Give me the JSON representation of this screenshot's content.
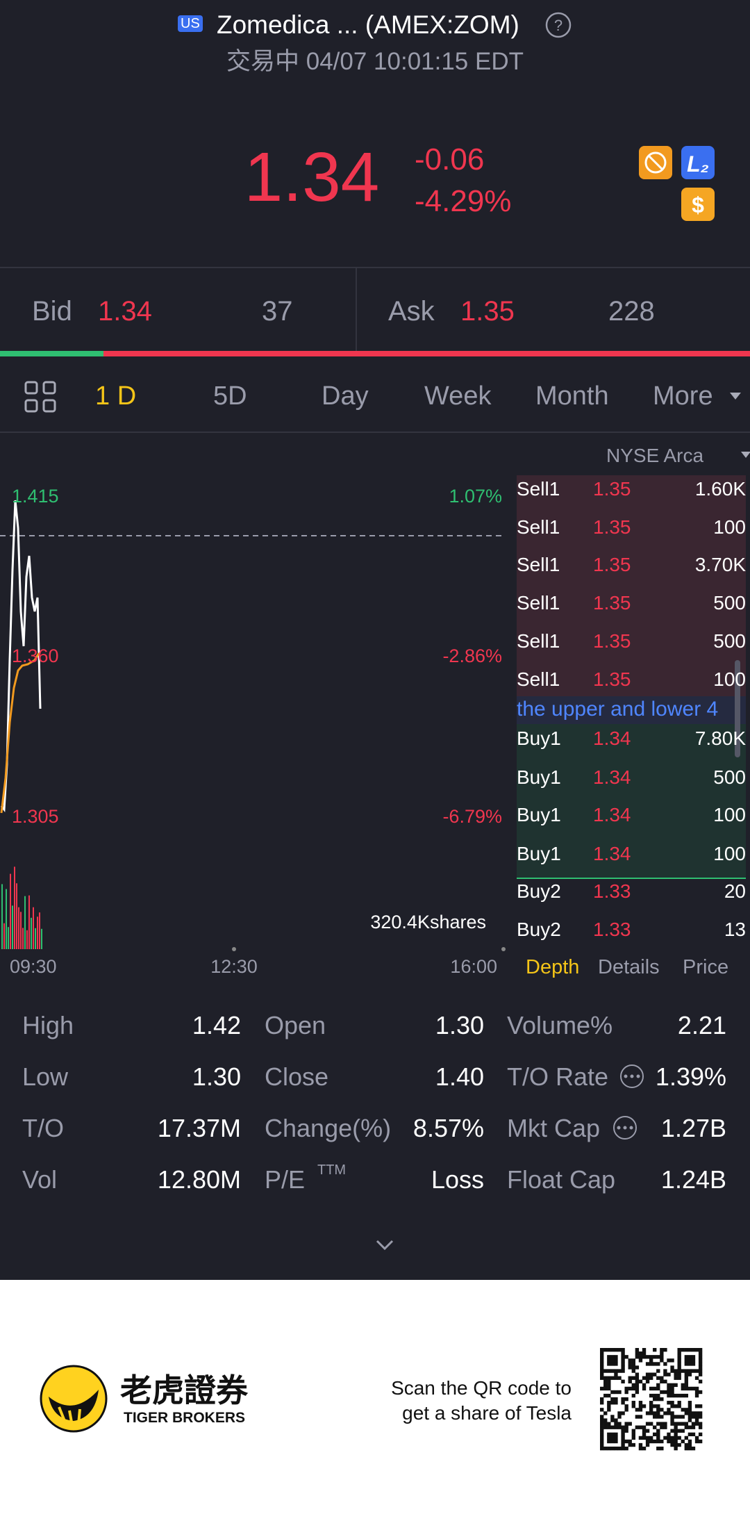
{
  "header": {
    "badge": "US",
    "title": "Zomedica ... (AMEX:ZOM)",
    "status": "交易中 04/07 10:01:15 EDT"
  },
  "quote": {
    "price": "1.34",
    "change": "-0.06",
    "change_pct": "-4.29%"
  },
  "bid_ask": {
    "bid_label": "Bid",
    "bid": "1.34",
    "bid_size": "37",
    "ask_label": "Ask",
    "ask": "1.35",
    "ask_size": "228"
  },
  "periods": [
    "1 D",
    "5D",
    "Day",
    "Week",
    "Month",
    "More"
  ],
  "chart": {
    "exchange": "NYSE Arca",
    "price_labels": [
      "1.415",
      "1.360",
      "1.305"
    ],
    "pct_labels": [
      "1.07%",
      "-2.86%",
      "-6.79%"
    ],
    "volume": "320.4Kshares",
    "times": [
      "09:30",
      "12:30",
      "16:00"
    ]
  },
  "order_book": {
    "sell": [
      [
        "Sell1",
        "1.35",
        "1.60K"
      ],
      [
        "Sell1",
        "1.35",
        "100"
      ],
      [
        "Sell1",
        "1.35",
        "3.70K"
      ],
      [
        "Sell1",
        "1.35",
        "500"
      ],
      [
        "Sell1",
        "1.35",
        "500"
      ],
      [
        "Sell1",
        "1.35",
        "100"
      ]
    ],
    "notice": "the upper and lower 4",
    "buy": [
      [
        "Buy1",
        "1.34",
        "7.80K"
      ],
      [
        "Buy1",
        "1.34",
        "500"
      ],
      [
        "Buy1",
        "1.34",
        "100"
      ],
      [
        "Buy1",
        "1.34",
        "100"
      ],
      [
        "Buy2",
        "1.33",
        "20"
      ],
      [
        "Buy2",
        "1.33",
        "13"
      ]
    ],
    "tabs": [
      "Depth",
      "Details",
      "Price"
    ]
  },
  "stats": [
    [
      {
        "label": "High",
        "value": "1.42"
      },
      {
        "label": "Open",
        "value": "1.30"
      },
      {
        "label": "Volume%",
        "value": "2.21"
      }
    ],
    [
      {
        "label": "Low",
        "value": "1.30"
      },
      {
        "label": "Close",
        "value": "1.40"
      },
      {
        "label": "T/O Rate",
        "value": "1.39%"
      }
    ],
    [
      {
        "label": "T/O",
        "value": "17.37M"
      },
      {
        "label": "Change(%)",
        "value": "8.57%"
      },
      {
        "label": "Mkt Cap",
        "value": "1.27B"
      }
    ],
    [
      {
        "label": "Vol",
        "value": "12.80M"
      },
      {
        "label": "P/E",
        "sup": "TTM",
        "value": "Loss"
      },
      {
        "label": "Float Cap",
        "value": "1.24B"
      }
    ]
  ],
  "footer": {
    "brand_cn": "老虎證券",
    "brand_en": "TIGER BROKERS",
    "scan": [
      "Scan the QR code to",
      "get a share of Tesla"
    ]
  }
}
